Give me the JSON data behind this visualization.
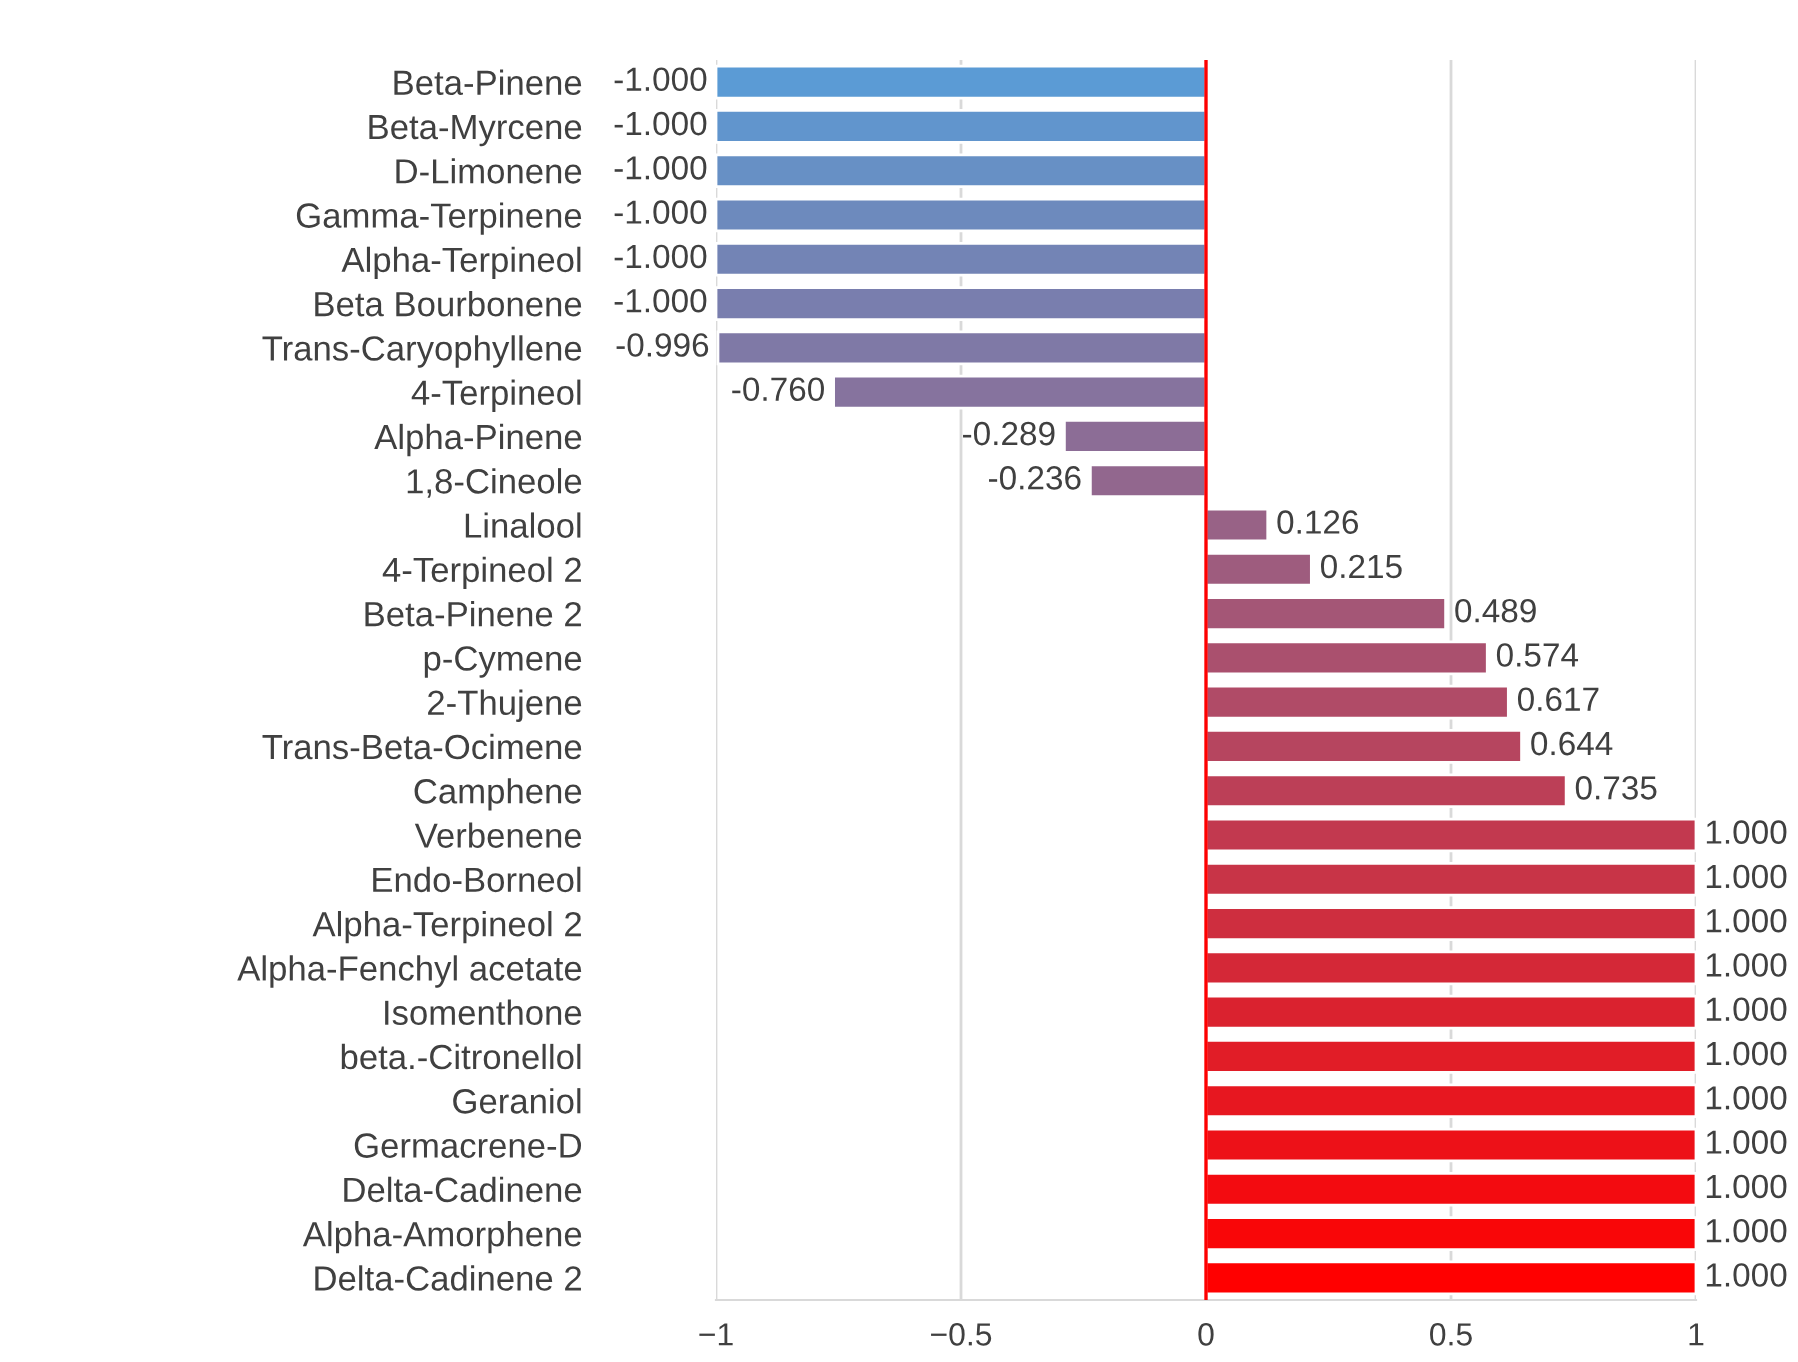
{
  "chart_data": {
    "type": "bar",
    "orientation": "horizontal",
    "categories": [
      "Beta-Pinene",
      "Beta-Myrcene",
      "D-Limonene",
      "Gamma-Terpinene",
      "Alpha-Terpineol",
      "Beta Bourbonene",
      "Trans-Caryophyllene",
      "4-Terpineol",
      "Alpha-Pinene",
      "1,8-Cineole",
      "Linalool",
      "4-Terpineol 2",
      "Beta-Pinene 2",
      "p-Cymene",
      "2-Thujene",
      "Trans-Beta-Ocimene",
      "Camphene",
      "Verbenene",
      "Endo-Borneol",
      "Alpha-Terpineol 2",
      "Alpha-Fenchyl acetate",
      "Isomenthone",
      "beta.-Citronellol",
      "Geraniol",
      "Germacrene-D",
      "Delta-Cadinene",
      "Alpha-Amorphene",
      "Delta-Cadinene 2"
    ],
    "values": [
      -1.0,
      -1.0,
      -1.0,
      -1.0,
      -1.0,
      -1.0,
      -0.996,
      -0.76,
      -0.289,
      -0.236,
      0.126,
      0.215,
      0.489,
      0.574,
      0.617,
      0.644,
      0.735,
      1.0,
      1.0,
      1.0,
      1.0,
      1.0,
      1.0,
      1.0,
      1.0,
      1.0,
      1.0,
      1.0
    ],
    "value_labels": [
      "-1.000",
      "-1.000",
      "-1.000",
      "-1.000",
      "-1.000",
      "-1.000",
      "-0.996",
      "-0.760",
      "-0.289",
      "-0.236",
      "0.126",
      "0.215",
      "0.489",
      "0.574",
      "0.617",
      "0.644",
      "0.735",
      "1.000",
      "1.000",
      "1.000",
      "1.000",
      "1.000",
      "1.000",
      "1.000",
      "1.000",
      "1.000",
      "1.000",
      "1.000"
    ],
    "colors": [
      "#5b9bd5",
      "#6195cd",
      "#6790c5",
      "#6d8abd",
      "#7384b5",
      "#797eae",
      "#7f79a6",
      "#86739e",
      "#8c6d96",
      "#92678e",
      "#986286",
      "#9e5c7e",
      "#a45676",
      "#aa506e",
      "#b04b67",
      "#b6455f",
      "#bc3f57",
      "#c2394f",
      "#c83447",
      "#ce2e3f",
      "#d42837",
      "#da222f",
      "#e11d27",
      "#e71720",
      "#ed1118",
      "#f30b10",
      "#f90608",
      "#ff0000"
    ],
    "xlim": [
      -1,
      1
    ],
    "xticks": [
      {
        "value": -1,
        "label": "−1"
      },
      {
        "value": -0.5,
        "label": "−0.5"
      },
      0,
      0.5,
      1
    ],
    "grid": "x",
    "ref_lines": [
      {
        "axis": "x",
        "value": 0,
        "color": "#ff0000"
      }
    ]
  }
}
